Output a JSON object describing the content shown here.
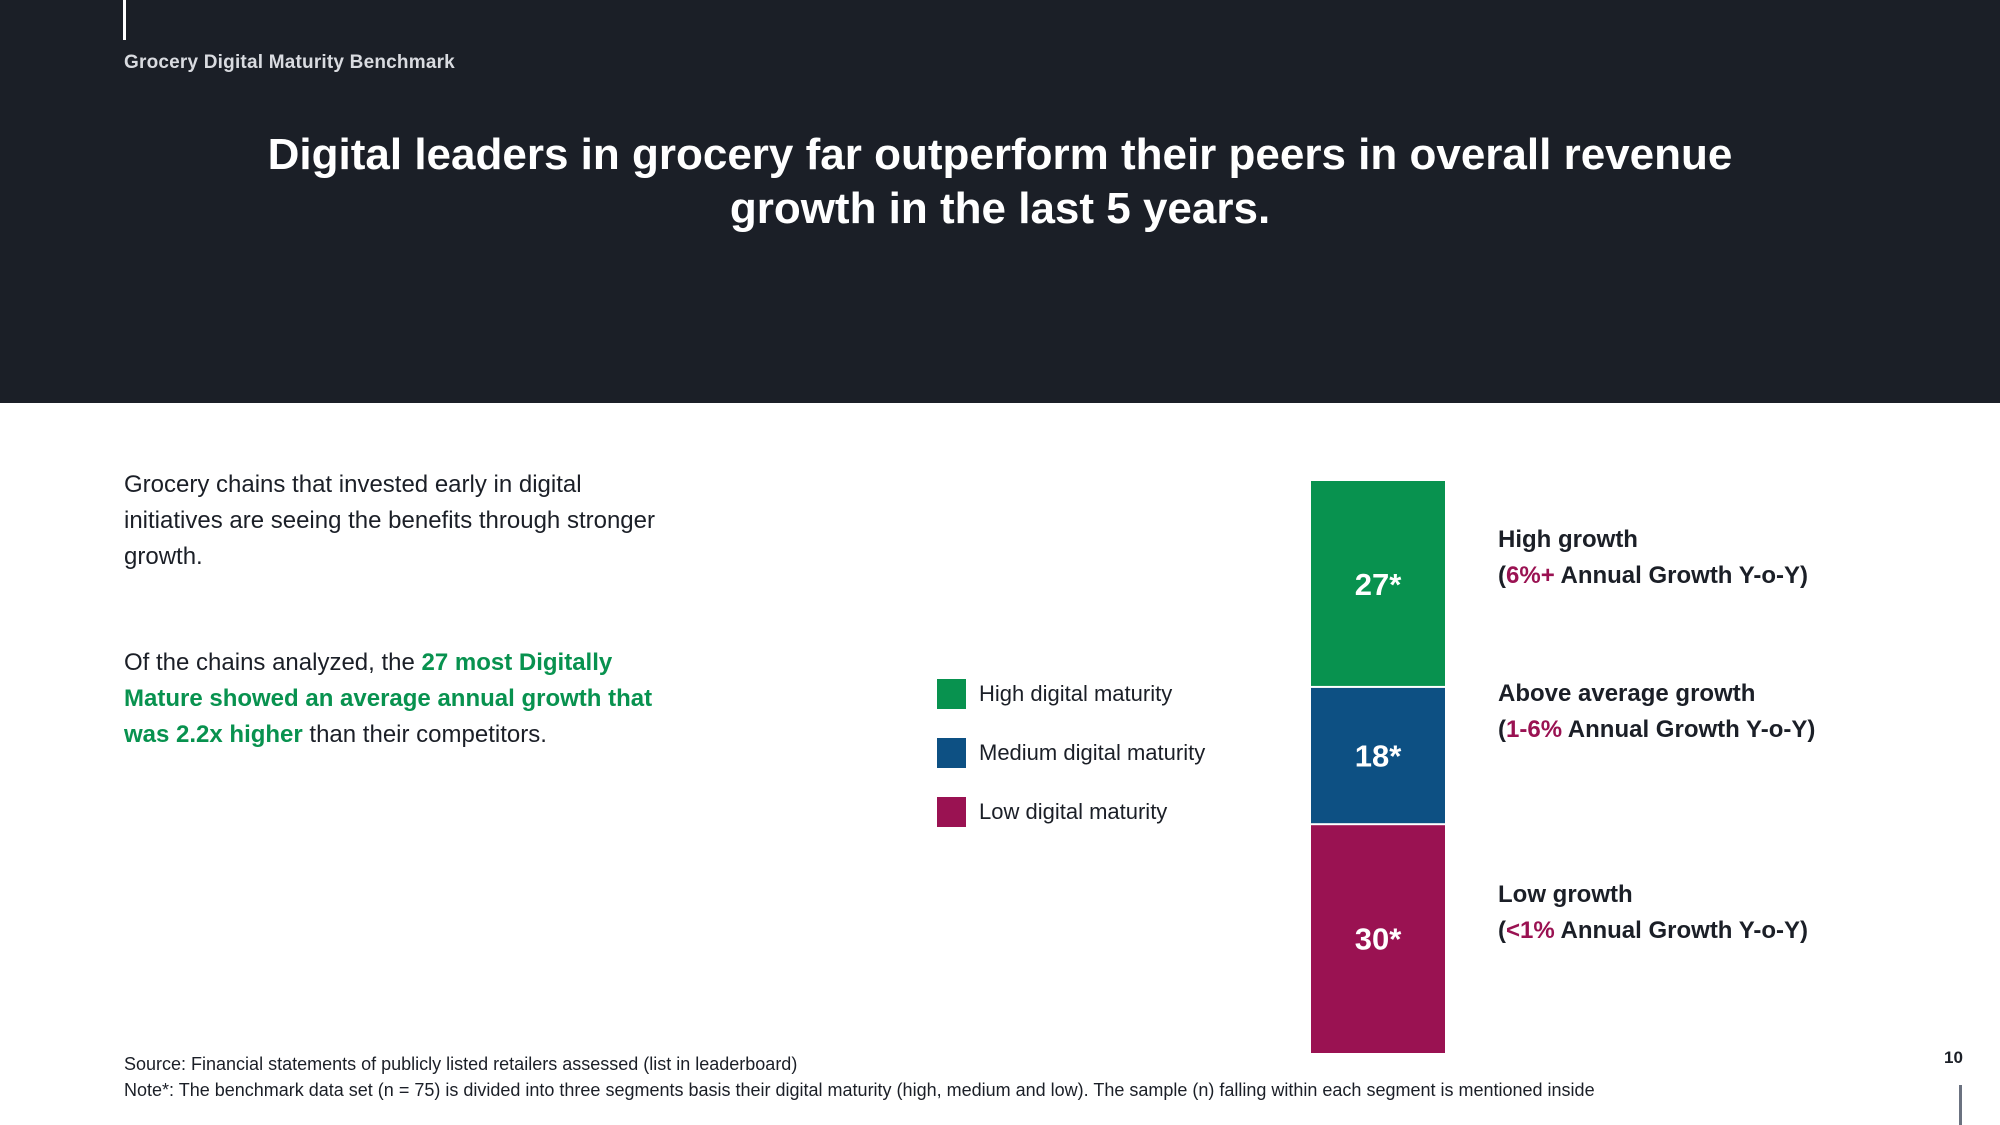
{
  "header": {
    "breadcrumb": "Grocery Digital Maturity Benchmark",
    "headline": "Digital leaders in grocery far outperform their peers in overall revenue growth in the last 5 years."
  },
  "body": {
    "intro": "Grocery chains that invested early in digital initiatives are seeing the benefits through stronger growth.",
    "para_prefix": "Of the chains analyzed, the ",
    "para_highlight": "27 most Digitally Mature showed an average annual growth that was 2.2x higher",
    "para_suffix": " than their competitors."
  },
  "colors": {
    "high": "#08924f",
    "medium": "#0d5083",
    "low": "#9a1252",
    "header_bg": "#1b1f27"
  },
  "chart_data": {
    "type": "bar",
    "stacked": true,
    "categories": [
      ""
    ],
    "series": [
      {
        "name": "High digital maturity",
        "values": [
          27
        ],
        "label": "27*",
        "color": "#08924f"
      },
      {
        "name": "Medium digital maturity",
        "values": [
          18
        ],
        "label": "18*",
        "color": "#0d5083"
      },
      {
        "name": "Low digital maturity",
        "values": [
          30
        ],
        "label": "30*",
        "color": "#9a1252"
      }
    ],
    "total": 75,
    "title": "",
    "legend_position": "left"
  },
  "legend": {
    "items": [
      {
        "label": "High digital maturity"
      },
      {
        "label": "Medium digital maturity"
      },
      {
        "label": "Low digital maturity"
      }
    ]
  },
  "annotations": [
    {
      "title": "High growth",
      "open": "(",
      "range": "6%+",
      "rest": " Annual Growth Y-o-Y)"
    },
    {
      "title": "Above average growth",
      "open": "(",
      "range": "1-6%",
      "rest": " Annual Growth Y-o-Y)"
    },
    {
      "title": "Low growth",
      "open": "(",
      "range": "<1%",
      "rest": " Annual Growth Y-o-Y)"
    }
  ],
  "footer": {
    "source": "Source: Financial statements of publicly listed retailers assessed (list in leaderboard)",
    "note": "Note*: The benchmark data set (n = 75)  is divided into three segments basis their digital maturity (high, medium and low). The sample (n) falling within each segment is mentioned inside"
  },
  "page_number": "10"
}
